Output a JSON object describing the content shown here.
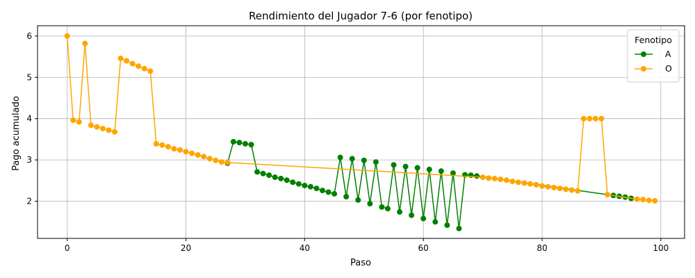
{
  "chart_data": {
    "type": "line",
    "title": "Rendimiento del Jugador 7-6 (por fenotipo)",
    "xlabel": "Paso",
    "ylabel": "Pago acumulado",
    "xlim": [
      -5,
      104
    ],
    "ylim": [
      1.1,
      6.25
    ],
    "xticks": [
      0,
      20,
      40,
      60,
      80,
      100
    ],
    "yticks": [
      2,
      3,
      4,
      5,
      6
    ],
    "grid": true,
    "legend": {
      "title": "Fenotipo",
      "position": "top-right"
    },
    "series": [
      {
        "name": "A",
        "color": "#008000",
        "x": [
          27,
          28,
          29,
          30,
          31,
          32,
          33,
          34,
          35,
          36,
          37,
          38,
          39,
          40,
          41,
          42,
          43,
          44,
          45,
          46,
          47,
          48,
          49,
          50,
          51,
          52,
          53,
          54,
          55,
          56,
          57,
          58,
          59,
          60,
          61,
          62,
          63,
          64,
          65,
          66,
          67,
          68,
          69,
          92,
          93,
          94,
          95
        ],
        "y": [
          2.92,
          3.44,
          3.42,
          3.39,
          3.37,
          2.71,
          2.67,
          2.63,
          2.58,
          2.55,
          2.51,
          2.46,
          2.42,
          2.38,
          2.35,
          2.31,
          2.26,
          2.22,
          2.18,
          3.06,
          2.11,
          3.03,
          2.03,
          2.99,
          1.94,
          2.95,
          1.86,
          1.82,
          2.88,
          1.74,
          2.84,
          1.66,
          2.81,
          1.58,
          2.77,
          1.5,
          2.73,
          1.42,
          2.68,
          1.34,
          2.64,
          2.63,
          2.61,
          2.14,
          2.12,
          2.1,
          2.07
        ]
      },
      {
        "name": "O",
        "color": "#FFA500",
        "x": [
          0,
          1,
          2,
          3,
          4,
          5,
          6,
          7,
          8,
          9,
          10,
          11,
          12,
          13,
          14,
          15,
          16,
          17,
          18,
          19,
          20,
          21,
          22,
          23,
          24,
          25,
          26,
          27,
          70,
          71,
          72,
          73,
          74,
          75,
          76,
          77,
          78,
          79,
          80,
          81,
          82,
          83,
          84,
          85,
          86,
          87,
          88,
          89,
          90,
          91,
          96,
          97,
          98,
          99
        ],
        "y": [
          6.0,
          3.96,
          3.92,
          5.82,
          3.84,
          3.8,
          3.76,
          3.72,
          3.68,
          5.46,
          5.4,
          5.33,
          5.27,
          5.21,
          5.15,
          3.39,
          3.36,
          3.32,
          3.27,
          3.24,
          3.2,
          3.16,
          3.12,
          3.08,
          3.03,
          2.99,
          2.95,
          2.94,
          2.58,
          2.56,
          2.55,
          2.53,
          2.51,
          2.48,
          2.46,
          2.44,
          2.42,
          2.4,
          2.37,
          2.35,
          2.33,
          2.31,
          2.29,
          2.27,
          2.25,
          4.0,
          4.0,
          4.0,
          4.0,
          2.16,
          2.05,
          2.04,
          2.02,
          2.01
        ]
      }
    ]
  }
}
